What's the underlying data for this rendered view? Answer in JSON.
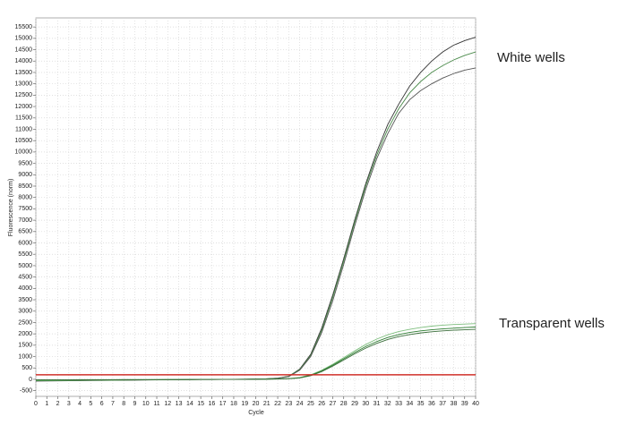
{
  "chart_data": {
    "type": "line",
    "x_label": "Cycle",
    "y_label": "Fluorescence (norm)",
    "annotations": [
      "White wells",
      "Transparent wells"
    ],
    "x": [
      0,
      1,
      2,
      3,
      4,
      5,
      6,
      7,
      8,
      9,
      10,
      11,
      12,
      13,
      14,
      15,
      16,
      17,
      18,
      19,
      20,
      21,
      22,
      23,
      24,
      25,
      26,
      27,
      28,
      29,
      30,
      31,
      32,
      33,
      34,
      35,
      36,
      37,
      38,
      39,
      40
    ],
    "xlim": [
      0,
      40
    ],
    "xticks": [
      0,
      1,
      2,
      3,
      4,
      5,
      6,
      7,
      8,
      9,
      10,
      11,
      12,
      13,
      14,
      15,
      16,
      17,
      18,
      19,
      20,
      21,
      22,
      23,
      24,
      25,
      26,
      27,
      28,
      29,
      30,
      31,
      32,
      33,
      34,
      35,
      36,
      37,
      38,
      39,
      40
    ],
    "ylim": [
      -750,
      15900
    ],
    "yticks": [
      -500,
      0,
      500,
      1000,
      1500,
      2000,
      2500,
      3000,
      3500,
      4000,
      4500,
      5000,
      5500,
      6000,
      6500,
      7000,
      7500,
      8000,
      8500,
      9000,
      9500,
      10000,
      10500,
      11000,
      11500,
      12000,
      12500,
      13000,
      13500,
      14000,
      14500,
      15000,
      15500
    ],
    "grid": true,
    "threshold": {
      "value": 200,
      "color": "#d0302a"
    },
    "series": [
      {
        "color": "#333333",
        "values": [
          -80,
          -75,
          -70,
          -65,
          -60,
          -55,
          -50,
          -45,
          -40,
          -35,
          -30,
          -25,
          -20,
          -15,
          -10,
          -5,
          0,
          0,
          0,
          5,
          10,
          20,
          50,
          130,
          450,
          1100,
          2250,
          3700,
          5300,
          7000,
          8600,
          10000,
          11200,
          12100,
          12900,
          13500,
          14000,
          14400,
          14700,
          14900,
          15050
        ]
      },
      {
        "color": "#4a8a4a",
        "values": [
          -60,
          -58,
          -55,
          -52,
          -50,
          -46,
          -42,
          -38,
          -34,
          -30,
          -26,
          -22,
          -18,
          -14,
          -10,
          -6,
          -2,
          0,
          2,
          6,
          12,
          25,
          55,
          140,
          430,
          1050,
          2150,
          3600,
          5200,
          6900,
          8500,
          9850,
          11000,
          11900,
          12600,
          13100,
          13500,
          13800,
          14050,
          14250,
          14400
        ]
      },
      {
        "color": "#555555",
        "values": [
          -40,
          -38,
          -36,
          -34,
          -32,
          -30,
          -28,
          -26,
          -24,
          -22,
          -20,
          -18,
          -16,
          -14,
          -12,
          -10,
          -8,
          -6,
          -3,
          2,
          10,
          22,
          45,
          120,
          400,
          1000,
          2050,
          3450,
          5050,
          6750,
          8350,
          9700,
          10800,
          11700,
          12300,
          12700,
          13000,
          13250,
          13450,
          13600,
          13700
        ]
      },
      {
        "color": "#7fbf7f",
        "values": [
          -60,
          -56,
          -52,
          -48,
          -44,
          -40,
          -36,
          -32,
          -28,
          -24,
          -20,
          -16,
          -12,
          -10,
          -8,
          -6,
          -4,
          -2,
          0,
          2,
          5,
          10,
          20,
          35,
          80,
          200,
          400,
          660,
          950,
          1250,
          1530,
          1770,
          1960,
          2100,
          2200,
          2280,
          2340,
          2380,
          2410,
          2430,
          2450
        ]
      },
      {
        "color": "#2e7d32",
        "values": [
          -40,
          -38,
          -36,
          -34,
          -32,
          -30,
          -28,
          -26,
          -24,
          -22,
          -20,
          -18,
          -16,
          -14,
          -12,
          -10,
          -8,
          -6,
          -4,
          0,
          4,
          8,
          15,
          30,
          70,
          180,
          370,
          620,
          900,
          1180,
          1440,
          1660,
          1840,
          1970,
          2060,
          2130,
          2180,
          2220,
          2250,
          2280,
          2300
        ]
      },
      {
        "color": "#3b6e3b",
        "values": [
          -20,
          -20,
          -18,
          -18,
          -16,
          -16,
          -14,
          -14,
          -12,
          -12,
          -10,
          -10,
          -8,
          -8,
          -6,
          -6,
          -4,
          -4,
          -2,
          0,
          3,
          6,
          12,
          25,
          60,
          160,
          340,
          580,
          850,
          1120,
          1370,
          1580,
          1750,
          1880,
          1970,
          2040,
          2090,
          2130,
          2160,
          2180,
          2200
        ]
      }
    ]
  }
}
